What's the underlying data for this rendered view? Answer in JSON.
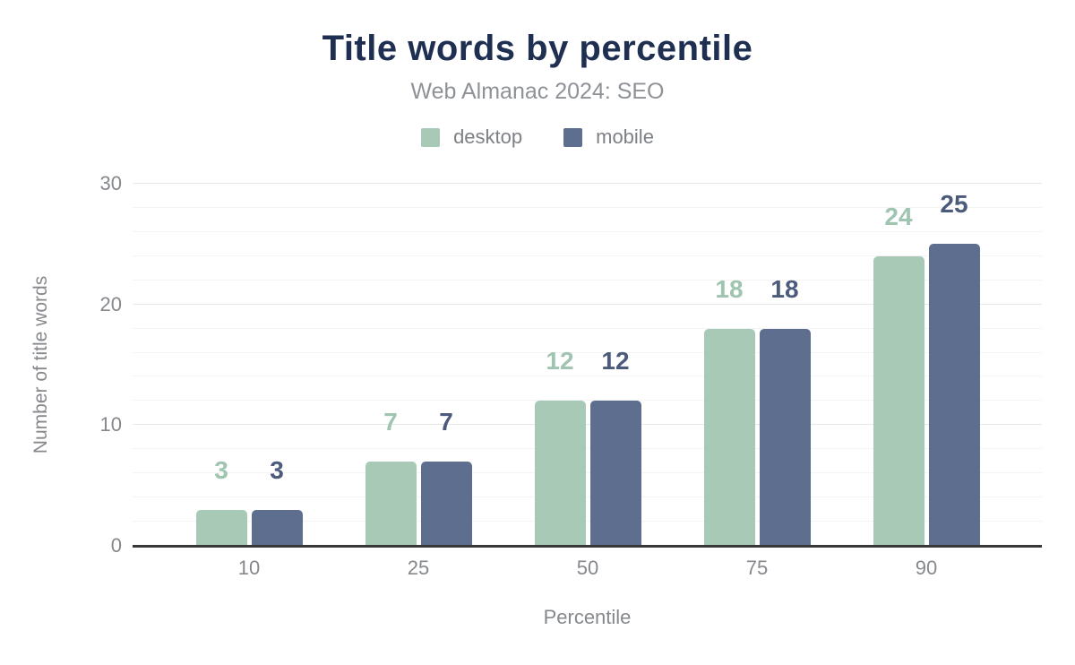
{
  "chart_data": {
    "type": "bar",
    "title": "Title words by percentile",
    "subtitle": "Web Almanac 2024: SEO",
    "xlabel": "Percentile",
    "ylabel": "Number of title words",
    "categories": [
      "10",
      "25",
      "50",
      "75",
      "90"
    ],
    "series": [
      {
        "name": "desktop",
        "color": "#a7c9b6",
        "label_color": "#9fc4b0",
        "values": [
          3,
          7,
          12,
          18,
          24
        ]
      },
      {
        "name": "mobile",
        "color": "#5d6e8f",
        "label_color": "#4c5b7b",
        "values": [
          3,
          7,
          12,
          18,
          25
        ]
      }
    ],
    "ylim": [
      0,
      30
    ],
    "yticks": [
      0,
      10,
      20,
      30
    ],
    "minor_grid_step": 2,
    "grid": "on",
    "legend_position": "top",
    "colors": {
      "title": "#1e2f51",
      "subtitle": "#8e9297",
      "legend_text": "#7d8186",
      "tick_text": "#85888c",
      "axis_title_text": "#85888c",
      "axis_line": "#383838",
      "grid_minor": "#f4f4f4",
      "grid_major": "#e8e8e8",
      "background": "#ffffff"
    }
  }
}
